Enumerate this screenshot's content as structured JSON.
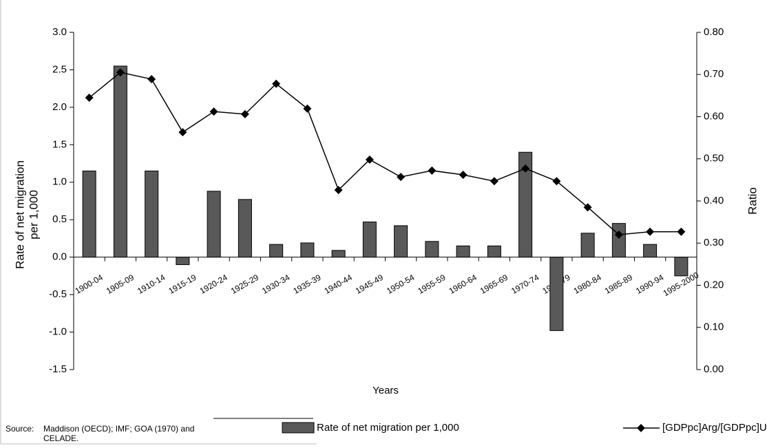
{
  "chart_data": {
    "type": "bar-line",
    "xlabel": "Years",
    "ylabel": [
      "Rate of net migration",
      "per 1,000"
    ],
    "y2label": "Ratio",
    "source_label": "Source:",
    "source_text": [
      "Maddison (OECD); IMF; GOA (1970) and",
      "CELADE."
    ],
    "categories": [
      "1900-04",
      "1905-09",
      "1910-14",
      "1915-19",
      "1920-24",
      "1925-29",
      "1930-34",
      "1935-39",
      "1940-44",
      "1945-49",
      "1950-54",
      "1955-59",
      "1960-64",
      "1965-69",
      "1970-74",
      "1975-79",
      "1980-84",
      "1985-89",
      "1990-94",
      "1995-2000"
    ],
    "series": [
      {
        "name": "Rate of net migration per 1,000",
        "type": "bar",
        "color": "#595959",
        "values": [
          1.15,
          2.55,
          1.15,
          -0.1,
          0.88,
          0.77,
          0.17,
          0.19,
          0.09,
          0.47,
          0.42,
          0.21,
          0.15,
          0.15,
          1.4,
          -0.98,
          0.32,
          0.45,
          0.17,
          -0.25
        ]
      },
      {
        "name": "[GDPpc]Arg/[GDPpc]USA",
        "type": "line",
        "axis": "y2",
        "color": "#000000",
        "values": [
          0.645,
          0.705,
          0.689,
          0.563,
          0.612,
          0.606,
          0.678,
          0.619,
          0.426,
          0.498,
          0.457,
          0.472,
          0.462,
          0.447,
          0.477,
          0.447,
          0.385,
          0.32,
          0.327,
          0.327
        ]
      }
    ],
    "ylim": [
      -1.5,
      3.0
    ],
    "yticks": [
      {
        "value": -1.5,
        "label": "-1.5"
      },
      {
        "value": -1.0,
        "label": "-1.0"
      },
      {
        "value": -0.5,
        "label": "-0.5"
      },
      {
        "value": 0,
        "label": "0.0"
      },
      {
        "value": 0.5,
        "label": "0.5"
      },
      {
        "value": 1.0,
        "label": "1.0"
      },
      {
        "value": 1.5,
        "label": "1.5"
      },
      {
        "value": 2.0,
        "label": "2.0"
      },
      {
        "value": 2.5,
        "label": "2.5"
      },
      {
        "value": 3.0,
        "label": "3.0"
      }
    ],
    "y2lim": [
      0,
      0.8
    ],
    "y2ticks": [
      {
        "value": 0,
        "label": "0.00"
      },
      {
        "value": 0.1,
        "label": "0.10"
      },
      {
        "value": 0.2,
        "label": "0.20"
      },
      {
        "value": 0.3,
        "label": "0.30"
      },
      {
        "value": 0.4,
        "label": "0.40"
      },
      {
        "value": 0.5,
        "label": "0.50"
      },
      {
        "value": 0.6,
        "label": "0.60"
      },
      {
        "value": 0.7,
        "label": "0.70"
      },
      {
        "value": 0.8,
        "label": "0.80"
      }
    ]
  }
}
